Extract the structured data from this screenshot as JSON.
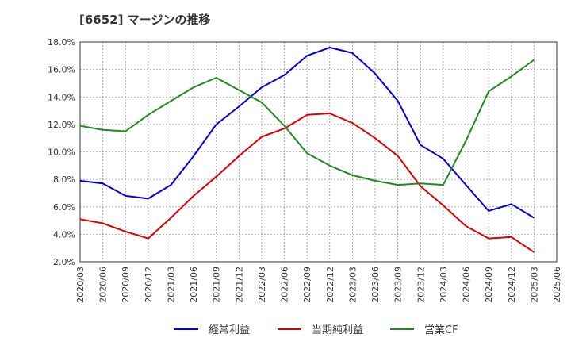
{
  "chart_data": {
    "type": "line",
    "title": "[6652]  マージンの推移",
    "xlabel": "",
    "ylabel": "",
    "ylim": [
      2.0,
      18.0
    ],
    "yticks": [
      "2.0%",
      "4.0%",
      "6.0%",
      "8.0%",
      "10.0%",
      "12.0%",
      "14.0%",
      "16.0%",
      "18.0%"
    ],
    "categories": [
      "2020/03",
      "2020/06",
      "2020/09",
      "2020/12",
      "2021/03",
      "2021/06",
      "2021/09",
      "2021/12",
      "2022/03",
      "2022/06",
      "2022/09",
      "2022/12",
      "2023/03",
      "2023/06",
      "2023/09",
      "2023/12",
      "2024/03",
      "2024/06",
      "2024/09",
      "2024/12",
      "2025/03",
      "2025/06"
    ],
    "grid": true,
    "legend_position": "bottom",
    "series": [
      {
        "name": "経常利益",
        "color": "#0000dd",
        "values": [
          7.9,
          7.7,
          6.8,
          6.6,
          7.6,
          9.7,
          12.0,
          13.3,
          14.7,
          15.6,
          17.0,
          17.6,
          17.2,
          15.7,
          13.7,
          10.5,
          9.5,
          7.6,
          5.7,
          6.2,
          5.2,
          null
        ]
      },
      {
        "name": "当期純利益",
        "color": "#dd0000",
        "values": [
          5.1,
          4.8,
          4.2,
          3.7,
          5.2,
          6.8,
          8.2,
          9.7,
          11.1,
          11.7,
          12.7,
          12.8,
          12.1,
          11.0,
          9.7,
          7.5,
          6.1,
          4.6,
          3.7,
          3.8,
          2.7,
          null
        ]
      },
      {
        "name": "営業CF",
        "color": "#228822",
        "values": [
          11.9,
          11.6,
          11.5,
          12.7,
          13.7,
          14.7,
          15.4,
          14.5,
          13.6,
          11.9,
          9.9,
          9.0,
          8.3,
          7.9,
          7.6,
          7.7,
          7.6,
          10.8,
          14.4,
          15.5,
          16.7,
          null
        ]
      }
    ]
  }
}
